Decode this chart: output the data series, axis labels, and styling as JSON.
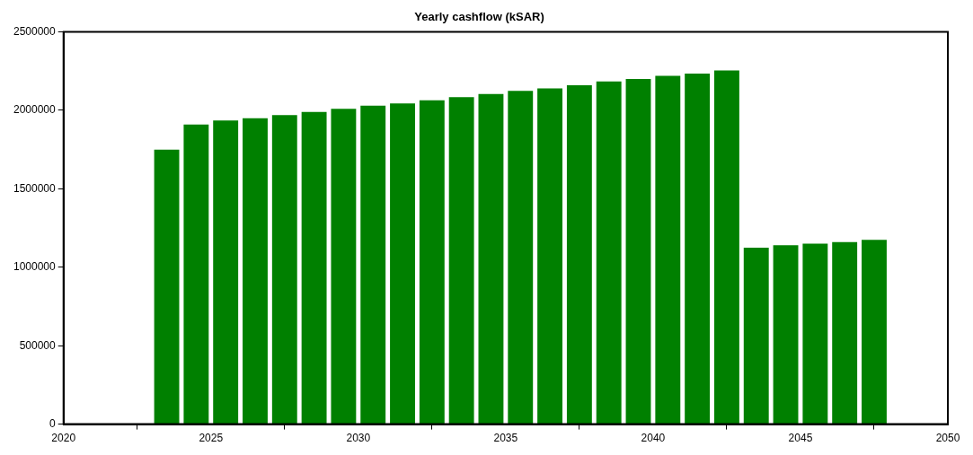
{
  "chart_data": {
    "type": "bar",
    "title": "Yearly cashflow (kSAR)",
    "x": [
      2023.5,
      2024.5,
      2025.5,
      2026.5,
      2027.5,
      2028.5,
      2029.5,
      2030.5,
      2031.5,
      2032.5,
      2033.5,
      2034.5,
      2035.5,
      2036.5,
      2037.5,
      2038.5,
      2039.5,
      2040.5,
      2041.5,
      2042.5,
      2043.5,
      2044.5,
      2045.5,
      2046.5,
      2047.5
    ],
    "values": [
      1750000,
      1910000,
      1935000,
      1950000,
      1970000,
      1990000,
      2010000,
      2030000,
      2045000,
      2065000,
      2085000,
      2105000,
      2125000,
      2140000,
      2160000,
      2185000,
      2200000,
      2220000,
      2235000,
      2255000,
      1125000,
      1140000,
      1150000,
      1160000,
      1175000
    ],
    "color": "#008000",
    "xlim": [
      2020,
      2050
    ],
    "xticks": [
      2020,
      2025,
      2030,
      2035,
      2040,
      2045,
      2050
    ],
    "ylim": [
      0,
      2500000
    ],
    "yticks": [
      0,
      500000,
      1000000,
      1500000,
      2000000,
      2500000
    ],
    "grid": false,
    "legend": false
  }
}
